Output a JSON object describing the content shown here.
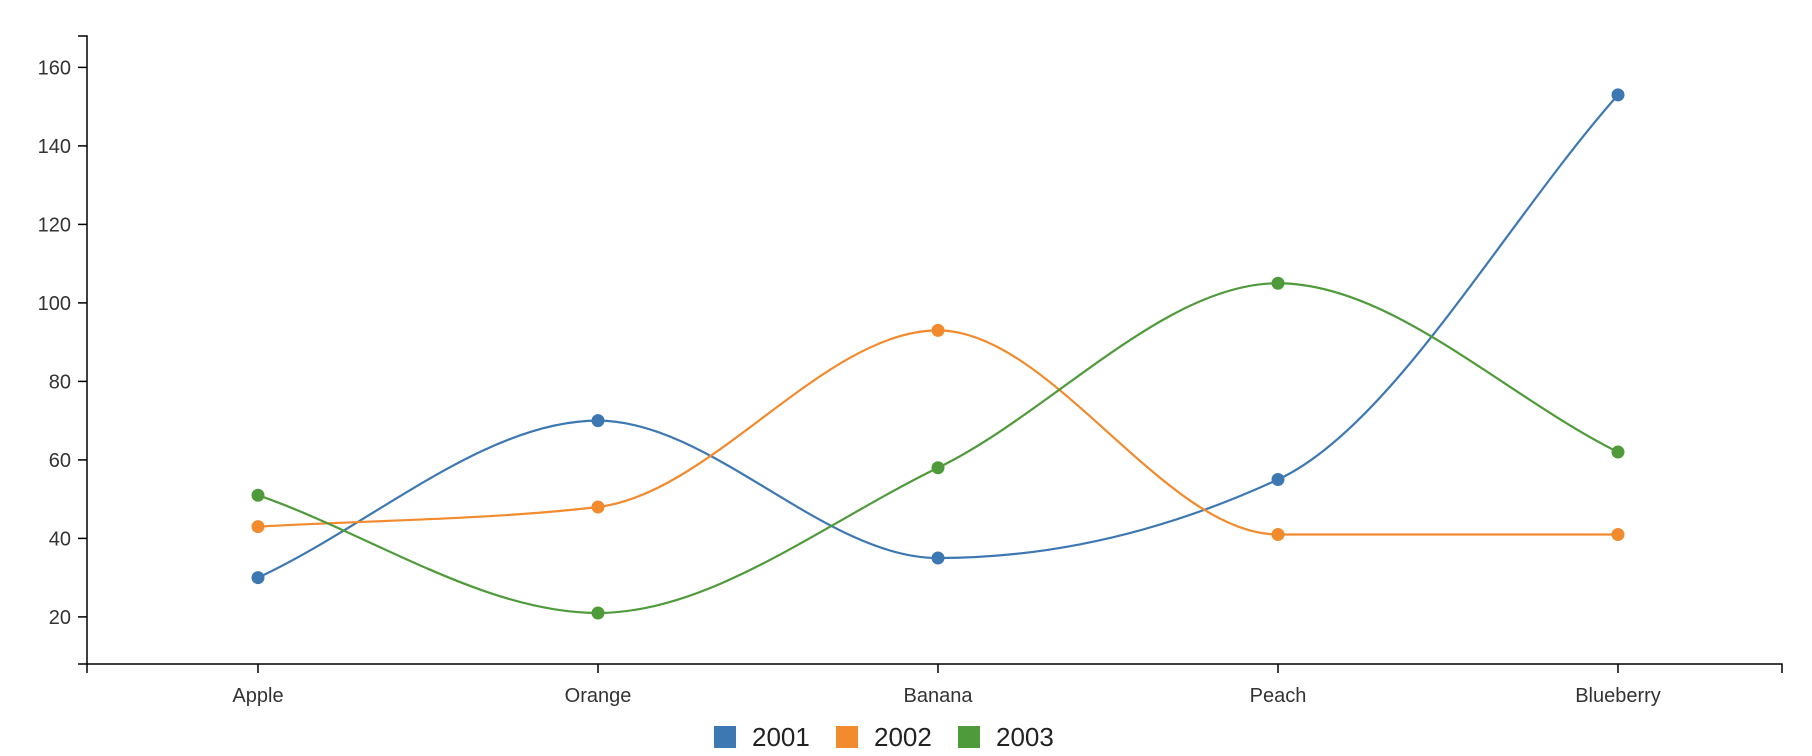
{
  "chart_data": {
    "type": "line",
    "smooth": true,
    "categories": [
      "Apple",
      "Orange",
      "Banana",
      "Peach",
      "Blueberry"
    ],
    "series": [
      {
        "name": "2001",
        "color": "#3e78b2",
        "values": [
          30,
          70,
          35,
          55,
          153
        ]
      },
      {
        "name": "2002",
        "color": "#f28a2e",
        "values": [
          43,
          48,
          93,
          41,
          41
        ]
      },
      {
        "name": "2003",
        "color": "#4f9a3b",
        "values": [
          51,
          21,
          58,
          105,
          62
        ]
      }
    ],
    "y_ticks": [
      20,
      40,
      60,
      80,
      100,
      120,
      140,
      160
    ],
    "ylim": [
      8,
      168
    ],
    "grid": false,
    "legend_position": "bottom-center",
    "title": "",
    "xlabel": "",
    "ylabel": ""
  }
}
